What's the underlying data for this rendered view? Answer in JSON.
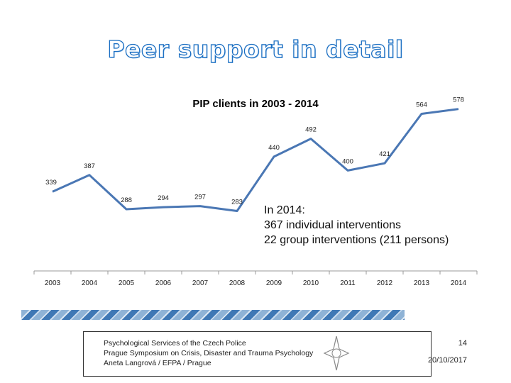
{
  "slide": {
    "title": "Peer support in detail",
    "note_lines": [
      "In 2014:",
      "367 individual interventions",
      "22 group interventions (211 persons)"
    ],
    "footer_lines": [
      "Psychological Services of the Czech Police",
      "Prague Symposium on Crisis, Disaster and Trauma Psychology",
      "Aneta Langrová / EFPA / Prague"
    ],
    "page_number": "14",
    "date": "20/10/2017"
  },
  "chart_data": {
    "type": "line",
    "title": "PIP clients in 2003 - 2014",
    "x": [
      "2003",
      "2004",
      "2005",
      "2006",
      "2007",
      "2008",
      "2009",
      "2010",
      "2011",
      "2012",
      "2013",
      "2014"
    ],
    "series": [
      {
        "name": "PIP clients",
        "values": [
          339,
          387,
          288,
          294,
          297,
          283,
          440,
          492,
          400,
          421,
          564,
          578
        ],
        "color": "#4a77b4"
      }
    ],
    "xlabel": "",
    "ylabel": "",
    "ylim": [
      0,
      600
    ],
    "grid": false
  }
}
